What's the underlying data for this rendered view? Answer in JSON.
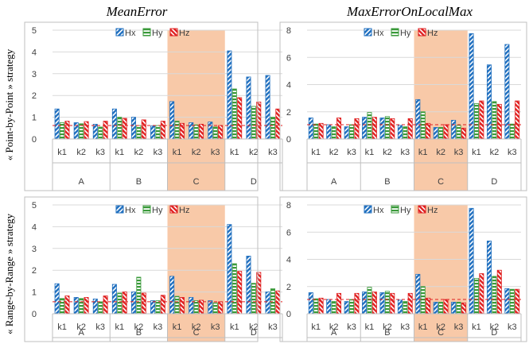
{
  "column_titles": [
    "MeanError",
    "MaxErrorOnLocalMax"
  ],
  "row_titles": [
    "« Point-by-Point » strategy",
    "« Range-by-Range » strategy"
  ],
  "legend": [
    "Hx",
    "Hy",
    "Hz"
  ],
  "colors": {
    "Hx": "#1f6fbf",
    "Hy": "#3a9a3a",
    "Hz": "#e02020",
    "highlight": "#f8c9a8",
    "threshold": "#e02020"
  },
  "chart_data": [
    {
      "type": "bar",
      "title": "MeanError",
      "row": "« Point-by-Point » strategy",
      "groups": [
        "A",
        "B",
        "C",
        "D"
      ],
      "subcategories": [
        "k1",
        "k2",
        "k3"
      ],
      "highlight_group": "C",
      "ylim": [
        0,
        5
      ],
      "yticks": [
        0,
        1,
        2,
        3,
        4,
        5
      ],
      "threshold": 0.62,
      "series": [
        {
          "name": "Hx",
          "values": [
            1.38,
            0.75,
            0.68,
            1.38,
            1.0,
            0.6,
            1.72,
            0.75,
            0.78,
            4.05,
            2.85,
            2.92
          ]
        },
        {
          "name": "Hy",
          "values": [
            0.75,
            0.7,
            0.55,
            1.0,
            0.62,
            0.62,
            0.82,
            0.65,
            0.55,
            2.3,
            1.5,
            1.0
          ]
        },
        {
          "name": "Hz",
          "values": [
            0.82,
            0.8,
            0.82,
            0.95,
            0.88,
            0.82,
            0.72,
            0.68,
            0.62,
            1.9,
            1.7,
            1.38
          ]
        }
      ]
    },
    {
      "type": "bar",
      "title": "MaxErrorOnLocalMax",
      "row": "« Point-by-Point » strategy",
      "groups": [
        "A",
        "B",
        "C",
        "D"
      ],
      "subcategories": [
        "k1",
        "k2",
        "k3"
      ],
      "highlight_group": "C",
      "ylim": [
        0,
        8
      ],
      "yticks": [
        0,
        2,
        4,
        6,
        8
      ],
      "threshold": 1.05,
      "series": [
        {
          "name": "Hx",
          "values": [
            1.55,
            1.05,
            0.9,
            1.6,
            1.55,
            1.0,
            2.9,
            0.85,
            1.38,
            7.75,
            5.45,
            6.95
          ]
        },
        {
          "name": "Hy",
          "values": [
            1.1,
            0.9,
            1.05,
            1.95,
            1.65,
            0.9,
            2.0,
            0.85,
            1.0,
            2.6,
            2.75,
            1.1
          ]
        },
        {
          "name": "Hz",
          "values": [
            1.15,
            1.55,
            1.5,
            1.6,
            1.5,
            1.5,
            1.15,
            1.05,
            0.8,
            2.8,
            2.55,
            2.8
          ]
        }
      ]
    },
    {
      "type": "bar",
      "title": "MeanError",
      "row": "« Range-by-Range » strategy",
      "groups": [
        "A",
        "B",
        "C",
        "D"
      ],
      "subcategories": [
        "k1",
        "k2",
        "k3"
      ],
      "highlight_group": "C",
      "ylim": [
        0,
        5
      ],
      "yticks": [
        0,
        1,
        2,
        3,
        4,
        5
      ],
      "threshold": 0.55,
      "series": [
        {
          "name": "Hx",
          "values": [
            1.38,
            0.75,
            0.68,
            1.35,
            1.0,
            0.6,
            1.72,
            0.75,
            0.6,
            4.1,
            2.65,
            1.0
          ]
        },
        {
          "name": "Hy",
          "values": [
            0.7,
            0.7,
            0.55,
            0.95,
            1.68,
            0.6,
            0.8,
            0.6,
            0.5,
            2.3,
            1.4,
            1.15
          ]
        },
        {
          "name": "Hz",
          "values": [
            0.82,
            0.75,
            0.82,
            1.0,
            0.95,
            0.85,
            0.75,
            0.62,
            0.55,
            1.95,
            1.9,
            1.05
          ]
        }
      ]
    },
    {
      "type": "bar",
      "title": "MaxErrorOnLocalMax",
      "row": "« Range-by-Range » strategy",
      "groups": [
        "A",
        "B",
        "C",
        "D"
      ],
      "subcategories": [
        "k1",
        "k2",
        "k3"
      ],
      "highlight_group": "C",
      "ylim": [
        0,
        8
      ],
      "yticks": [
        0,
        2,
        4,
        6,
        8
      ],
      "threshold": 1.05,
      "series": [
        {
          "name": "Hx",
          "values": [
            1.55,
            1.05,
            0.9,
            1.6,
            1.55,
            1.0,
            2.9,
            0.85,
            0.85,
            7.75,
            5.35,
            1.85
          ]
        },
        {
          "name": "Hy",
          "values": [
            1.1,
            0.9,
            1.05,
            1.95,
            1.65,
            0.9,
            2.0,
            0.85,
            0.85,
            2.6,
            2.75,
            1.8
          ]
        },
        {
          "name": "Hz",
          "values": [
            1.15,
            1.5,
            1.5,
            1.6,
            1.5,
            1.5,
            1.15,
            1.05,
            0.8,
            2.95,
            3.2,
            1.8
          ]
        }
      ]
    }
  ]
}
